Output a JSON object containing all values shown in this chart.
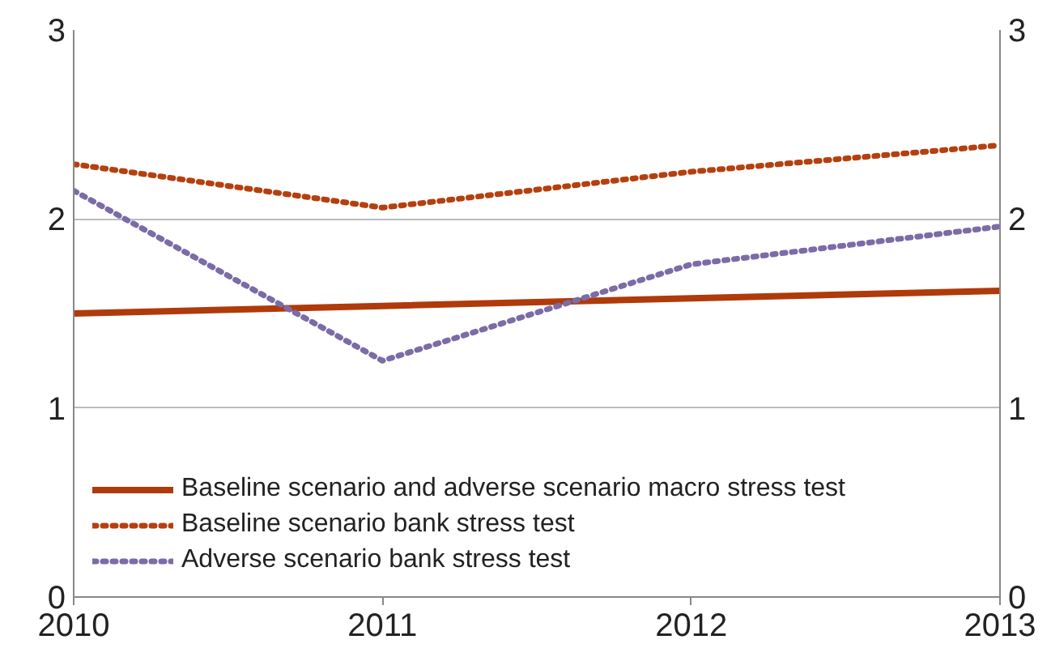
{
  "chart_data": {
    "type": "line",
    "x": [
      2010,
      2011,
      2012,
      2013
    ],
    "xlim": [
      2010,
      2013
    ],
    "xticks": [
      2010,
      2011,
      2012,
      2013
    ],
    "ylim": [
      0,
      3
    ],
    "yticks": [
      0,
      1,
      2,
      3
    ],
    "y2lim": [
      0,
      3
    ],
    "y2ticks": [
      0,
      1,
      2,
      3
    ],
    "grid": "y",
    "legend": "bottom left",
    "series": [
      {
        "name": "Baseline scenario and adverse scenario macro stress test",
        "color": "#b03a0a",
        "values": [
          1.5,
          1.54,
          1.58,
          1.62
        ],
        "line_style": "solid"
      },
      {
        "name": "Baseline scenario bank stress test",
        "color": "#b5400f",
        "values": [
          2.29,
          2.06,
          2.25,
          2.39
        ],
        "line_style": "dotted"
      },
      {
        "name": "Adverse scenario bank stress test",
        "color": "#7b6ba6",
        "values": [
          2.15,
          1.25,
          1.76,
          1.96
        ],
        "line_style": "dotted"
      }
    ]
  }
}
